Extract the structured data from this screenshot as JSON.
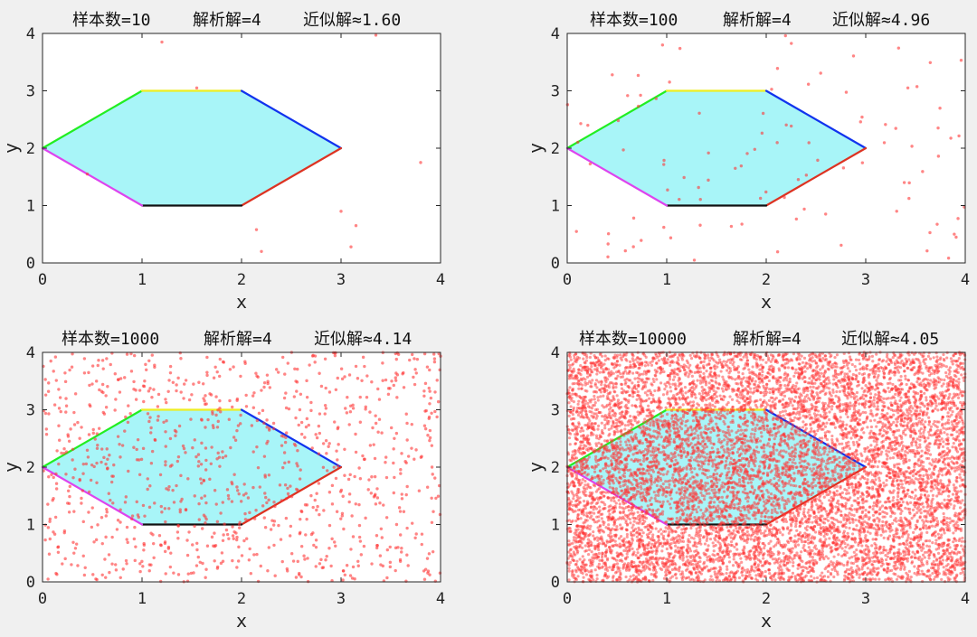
{
  "chart_data": [
    {
      "type": "scatter",
      "title": {
        "samples": "样本数=10",
        "analytic": "解析解=4",
        "approx": "近似解≈1.60"
      },
      "n": 10,
      "xlabel": "x",
      "ylabel": "y",
      "xlim": [
        0,
        4
      ],
      "ylim": [
        0,
        4
      ],
      "xticks": [
        "0",
        "1",
        "2",
        "3",
        "4"
      ],
      "yticks": [
        "0",
        "1",
        "2",
        "3",
        "4"
      ],
      "points": [
        [
          1.2,
          3.85
        ],
        [
          1.55,
          3.05
        ],
        [
          3.35,
          3.97
        ],
        [
          3.8,
          1.75
        ],
        [
          0.45,
          1.55
        ],
        [
          2.15,
          0.58
        ],
        [
          2.2,
          0.2
        ],
        [
          3.0,
          0.9
        ],
        [
          3.15,
          0.65
        ],
        [
          3.1,
          0.28
        ]
      ]
    },
    {
      "type": "scatter",
      "title": {
        "samples": "样本数=100",
        "analytic": "解析解=4",
        "approx": "近似解≈4.96"
      },
      "n": 100,
      "xlabel": "x",
      "ylabel": "y",
      "xlim": [
        0,
        4
      ],
      "ylim": [
        0,
        4
      ],
      "xticks": [
        "0",
        "1",
        "2",
        "3",
        "4"
      ],
      "yticks": [
        "0",
        "1",
        "2",
        "3",
        "4"
      ]
    },
    {
      "type": "scatter",
      "title": {
        "samples": "样本数=1000",
        "analytic": "解析解=4",
        "approx": "近似解≈4.14"
      },
      "n": 1000,
      "xlabel": "x",
      "ylabel": "y",
      "xlim": [
        0,
        4
      ],
      "ylim": [
        0,
        4
      ],
      "xticks": [
        "0",
        "1",
        "2",
        "3",
        "4"
      ],
      "yticks": [
        "0",
        "1",
        "2",
        "3",
        "4"
      ]
    },
    {
      "type": "scatter",
      "title": {
        "samples": "样本数=10000",
        "analytic": "解析解=4",
        "approx": "近似解≈4.05"
      },
      "n": 10000,
      "xlabel": "x",
      "ylabel": "y",
      "xlim": [
        0,
        4
      ],
      "ylim": [
        0,
        4
      ],
      "xticks": [
        "0",
        "1",
        "2",
        "3",
        "4"
      ],
      "yticks": [
        "0",
        "1",
        "2",
        "3",
        "4"
      ]
    }
  ],
  "hexagon": {
    "vertices": [
      [
        0,
        2
      ],
      [
        1,
        3
      ],
      [
        2,
        3
      ],
      [
        3,
        2
      ],
      [
        2,
        1
      ],
      [
        1,
        1
      ]
    ],
    "fill": "#a8f5f8",
    "edge_colors": [
      "#22ee22",
      "#eeee22",
      "#1133ee",
      "#dd3322",
      "#111111",
      "#dd44ee"
    ]
  },
  "point_color": "#ff3333",
  "background_color": "#f0f0f0"
}
